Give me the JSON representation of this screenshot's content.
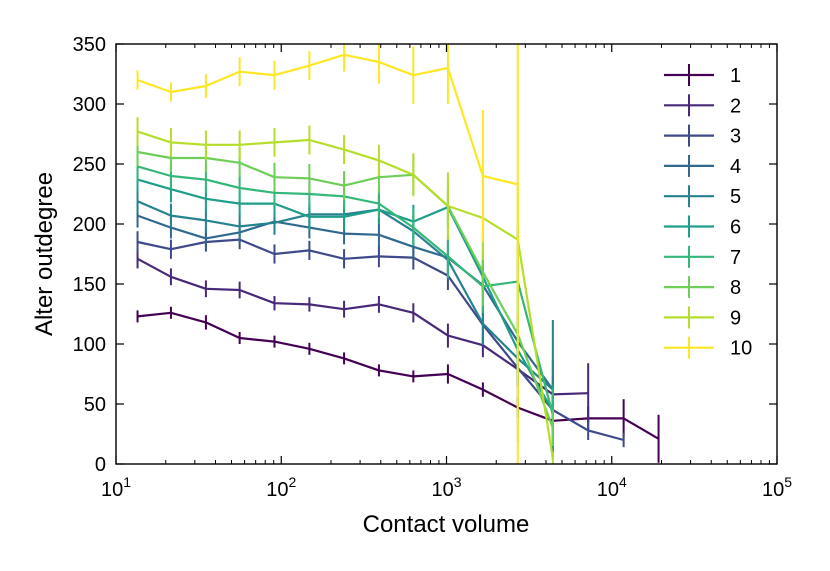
{
  "chart_data": {
    "type": "line",
    "title": "",
    "xlabel": "Contact volume",
    "ylabel": "Alter outdegree",
    "xscale": "log",
    "xlim": [
      10,
      100000
    ],
    "ylim": [
      0,
      350
    ],
    "x_ticks": [
      {
        "value": 10,
        "base": "10",
        "exp": "1"
      },
      {
        "value": 100,
        "base": "10",
        "exp": "2"
      },
      {
        "value": 1000,
        "base": "10",
        "exp": "3"
      },
      {
        "value": 10000,
        "base": "10",
        "exp": "4"
      },
      {
        "value": 100000,
        "base": "10",
        "exp": "5"
      }
    ],
    "y_ticks": [
      "0",
      "50",
      "100",
      "150",
      "200",
      "250",
      "300",
      "350"
    ],
    "legend_position": "top-right",
    "series": [
      {
        "name": "1",
        "color": "#440154",
        "x": [
          13.5,
          21.5,
          35,
          56,
          91,
          148,
          240,
          390,
          630,
          1020,
          1660,
          2700,
          4400,
          7200,
          11800,
          19200
        ],
        "y": [
          123,
          126,
          118,
          105,
          102,
          96,
          88,
          78,
          73,
          75,
          62,
          47,
          36,
          38,
          38,
          21
        ],
        "err": [
          5,
          5,
          6,
          5,
          5,
          5,
          5,
          5,
          5,
          8,
          6,
          8,
          6,
          10,
          16,
          20
        ]
      },
      {
        "name": "2",
        "color": "#482878",
        "x": [
          13.5,
          21.5,
          35,
          56,
          91,
          148,
          240,
          390,
          630,
          1020,
          1660,
          2700,
          4400,
          7200
        ],
        "y": [
          171,
          156,
          146,
          145,
          134,
          133,
          129,
          133,
          126,
          107,
          99,
          79,
          58,
          59
        ],
        "err": [
          8,
          7,
          7,
          7,
          6,
          6,
          7,
          7,
          8,
          10,
          10,
          14,
          15,
          25
        ]
      },
      {
        "name": "3",
        "color": "#3e4a89",
        "x": [
          13.5,
          21.5,
          35,
          56,
          91,
          148,
          240,
          390,
          630,
          1020,
          1660,
          2700,
          4400,
          7200,
          11800
        ],
        "y": [
          185,
          179,
          185,
          187,
          175,
          178,
          171,
          173,
          172,
          157,
          116,
          80,
          45,
          28,
          20
        ],
        "err": [
          9,
          8,
          8,
          8,
          8,
          8,
          8,
          9,
          10,
          12,
          14,
          14,
          12,
          8,
          6
        ]
      },
      {
        "name": "4",
        "color": "#31688e",
        "x": [
          13.5,
          21.5,
          35,
          56,
          91,
          148,
          240,
          390,
          630,
          1020,
          1660,
          2700,
          4400
        ],
        "y": [
          207,
          197,
          188,
          193,
          202,
          197,
          192,
          191,
          181,
          172,
          149,
          102,
          62
        ],
        "err": [
          10,
          9,
          9,
          9,
          9,
          9,
          9,
          10,
          11,
          14,
          18,
          20,
          25
        ]
      },
      {
        "name": "5",
        "color": "#26828e",
        "x": [
          13.5,
          21.5,
          35,
          56,
          91,
          148,
          240,
          390,
          630,
          1020,
          1660,
          2700,
          4400
        ],
        "y": [
          219,
          207,
          203,
          198,
          201,
          208,
          208,
          212,
          194,
          170,
          117,
          88,
          62
        ],
        "err": [
          10,
          10,
          10,
          10,
          10,
          10,
          10,
          11,
          13,
          16,
          18,
          22,
          58
        ]
      },
      {
        "name": "6",
        "color": "#1f9e89",
        "x": [
          13.5,
          21.5,
          35,
          56,
          91,
          148,
          240,
          390,
          630,
          1020,
          1660,
          2700,
          4400
        ],
        "y": [
          237,
          229,
          221,
          217,
          217,
          206,
          206,
          212,
          202,
          214,
          156,
          95,
          44
        ],
        "err": [
          11,
          11,
          11,
          11,
          11,
          11,
          11,
          12,
          14,
          17,
          20,
          28,
          22
        ]
      },
      {
        "name": "7",
        "color": "#35b779",
        "x": [
          13.5,
          21.5,
          35,
          56,
          91,
          148,
          240,
          390,
          630,
          1020,
          1660,
          2700,
          4400
        ],
        "y": [
          248,
          240,
          237,
          230,
          226,
          225,
          223,
          217,
          197,
          173,
          148,
          152,
          41
        ],
        "err": [
          12,
          11,
          11,
          11,
          11,
          11,
          11,
          12,
          15,
          18,
          22,
          30,
          22
        ]
      },
      {
        "name": "8",
        "color": "#6ece58",
        "x": [
          13.5,
          21.5,
          35,
          56,
          91,
          148,
          240,
          390,
          630,
          1020,
          1660,
          2700,
          4400
        ],
        "y": [
          260,
          255,
          255,
          251,
          239,
          238,
          232,
          239,
          241,
          215,
          160,
          108,
          30
        ],
        "err": [
          12,
          12,
          12,
          12,
          12,
          12,
          12,
          13,
          16,
          22,
          28,
          90,
          15
        ]
      },
      {
        "name": "9",
        "color": "#b5de2b",
        "x": [
          13.5,
          21.5,
          35,
          56,
          91,
          148,
          240,
          390,
          630,
          1020,
          1660,
          2700,
          4400
        ],
        "y": [
          277,
          268,
          266,
          266,
          268,
          270,
          262,
          253,
          241,
          215,
          205,
          187,
          5
        ],
        "err": [
          12,
          12,
          12,
          12,
          12,
          12,
          12,
          13,
          18,
          28,
          35,
          45,
          5
        ]
      },
      {
        "name": "10",
        "color": "#fde725",
        "x": [
          13.5,
          21.5,
          35,
          56,
          91,
          148,
          240,
          390,
          630,
          1020,
          1660,
          2700
        ],
        "y": [
          320,
          310,
          315,
          327,
          324,
          332,
          341,
          335,
          324,
          330,
          240,
          233
        ],
        "err": [
          8,
          8,
          10,
          12,
          12,
          12,
          14,
          18,
          24,
          30,
          55,
          240
        ]
      }
    ]
  }
}
